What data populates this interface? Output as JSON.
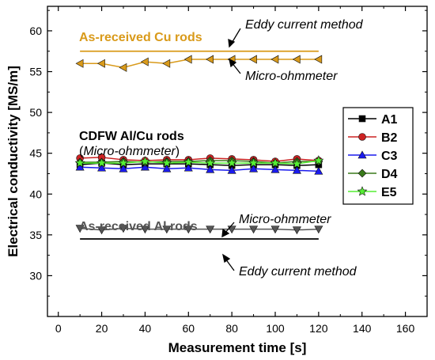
{
  "chart_data": {
    "type": "line",
    "xlabel": "Measurement time [s]",
    "ylabel": "Electrical conductivity [MS/m]",
    "xlim": [
      -5,
      170
    ],
    "ylim": [
      25,
      63
    ],
    "xticks": [
      0,
      20,
      40,
      60,
      80,
      100,
      120,
      140,
      160
    ],
    "yticks": [
      30,
      35,
      40,
      45,
      50,
      55,
      60
    ],
    "grid": false,
    "legend_position": "right",
    "x": [
      10,
      20,
      30,
      40,
      50,
      60,
      70,
      80,
      90,
      100,
      110,
      120
    ],
    "series": [
      {
        "name": "A1",
        "color": "#000000",
        "marker": "square",
        "values": [
          43.6,
          43.8,
          43.6,
          43.7,
          43.7,
          43.7,
          43.6,
          43.5,
          43.6,
          43.6,
          43.5,
          43.6
        ]
      },
      {
        "name": "B2",
        "color": "#cc2222",
        "marker": "circle",
        "values": [
          44.4,
          44.5,
          44.2,
          44.1,
          44.2,
          44.2,
          44.4,
          44.3,
          44.2,
          44.0,
          44.3,
          44.1
        ]
      },
      {
        "name": "C3",
        "color": "#1a1aee",
        "marker": "triangle-up",
        "values": [
          43.3,
          43.2,
          43.1,
          43.3,
          43.1,
          43.2,
          43.0,
          42.9,
          43.1,
          43.0,
          42.9,
          42.8
        ]
      },
      {
        "name": "D4",
        "color": "#3a7a1a",
        "marker": "diamond",
        "values": [
          43.9,
          43.9,
          44.0,
          43.9,
          44.0,
          44.0,
          44.1,
          44.1,
          44.0,
          43.8,
          44.0,
          44.0
        ]
      },
      {
        "name": "E5",
        "color": "#55ee33",
        "marker": "star",
        "values": [
          43.8,
          43.8,
          43.8,
          44.0,
          43.8,
          43.9,
          43.8,
          43.8,
          43.8,
          43.8,
          43.7,
          44.1
        ]
      }
    ],
    "reference_series": [
      {
        "label": "As-received Cu rods micro-ohmmeter",
        "color": "#d99a1a",
        "marker": "triangle-left",
        "values": [
          56.0,
          56.0,
          55.5,
          56.2,
          56.0,
          56.5,
          56.5,
          56.5,
          56.5,
          56.5,
          56.5,
          56.5
        ]
      },
      {
        "label": "As-received Al rods micro-ohmmeter",
        "color": "#555555",
        "marker": "triangle-down",
        "values": [
          35.8,
          35.6,
          35.8,
          35.7,
          35.7,
          35.7,
          35.7,
          35.7,
          35.7,
          35.7,
          35.6,
          35.7
        ]
      }
    ],
    "reference_lines": [
      {
        "label": "As-received Cu rods eddy current",
        "color": "#d99a1a",
        "y": 57.5,
        "x_from": 10,
        "x_to": 120
      },
      {
        "label": "As-received Al rods eddy current",
        "color": "#000000",
        "y": 34.5,
        "x_from": 10,
        "x_to": 120
      }
    ],
    "annotations": {
      "cu_rods_label": "As-received Cu rods",
      "eddy_top": "Eddy current method",
      "micro_top": "Micro-ohmmeter",
      "cdfw_label": "CDFW Al/Cu rods",
      "cdfw_paren_open": "(",
      "cdfw_paren_inner": "Micro-ohmmeter",
      "cdfw_paren_close": ")",
      "al_rods_label": "As-received Al rods",
      "micro_bottom": "Micro-ohmmeter",
      "eddy_bottom": "Eddy current method"
    }
  }
}
